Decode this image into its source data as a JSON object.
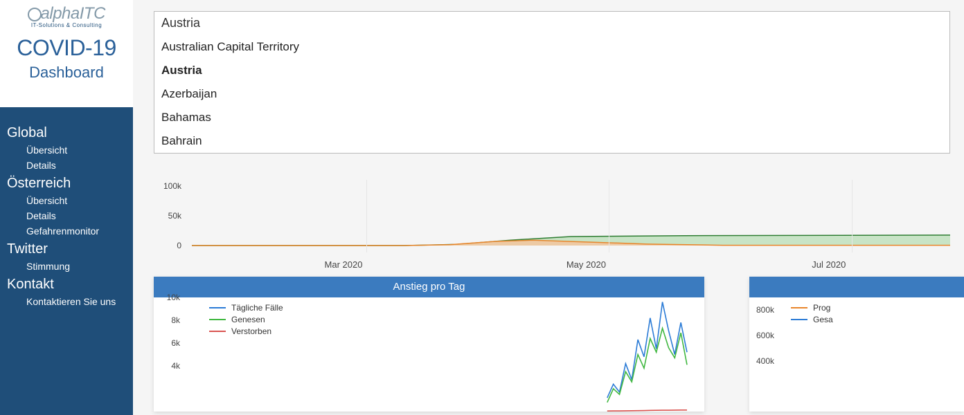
{
  "brand": {
    "left": "alpha",
    "right": "ITC",
    "sub": "IT-Solutions & Consulting"
  },
  "titles": {
    "covid": "COVID-19",
    "dashboard": "Dashboard"
  },
  "nav": {
    "sections": [
      {
        "title": "Global",
        "items": [
          "Übersicht",
          "Details"
        ]
      },
      {
        "title": "Österreich",
        "items": [
          "Übersicht",
          "Details",
          "Gefahrenmonitor"
        ]
      },
      {
        "title": "Twitter",
        "items": [
          "Stimmung"
        ]
      },
      {
        "title": "Kontakt",
        "items": [
          "Kontaktieren Sie uns"
        ]
      }
    ]
  },
  "country_dropdown": {
    "value": "Austria",
    "options": [
      "Australian Capital Territory",
      "Austria",
      "Azerbaijan",
      "Bahamas",
      "Bahrain"
    ],
    "selected_index": 1
  },
  "area_chart": {
    "type": "area",
    "yticks": [
      "100k",
      "50k",
      "0"
    ],
    "ytick_values": [
      100000,
      50000,
      0
    ],
    "ylim": [
      0,
      110000
    ],
    "xticks": [
      "Mar 2020",
      "May 2020",
      "Jul 2020"
    ],
    "xtick_pos": [
      0.2,
      0.52,
      0.84
    ],
    "vline_pos": [
      0.23,
      0.55,
      0.87
    ],
    "grid_color": "#e6e6e6",
    "background_color": "#ffffff",
    "series": [
      {
        "name": "green_area",
        "fill": "#bfe0bd",
        "stroke": "#2e7d32",
        "stroke_width": 1.5,
        "points": [
          [
            0,
            0
          ],
          [
            0.28,
            0
          ],
          [
            0.35,
            2000
          ],
          [
            0.42,
            9000
          ],
          [
            0.5,
            15000
          ],
          [
            0.65,
            16500
          ],
          [
            0.8,
            17000
          ],
          [
            1.0,
            17500
          ]
        ]
      },
      {
        "name": "orange_area",
        "fill": "#f3c59e",
        "stroke": "#e8852b",
        "stroke_width": 1.5,
        "points": [
          [
            0,
            0
          ],
          [
            0.28,
            0
          ],
          [
            0.34,
            1500
          ],
          [
            0.4,
            7000
          ],
          [
            0.45,
            9000
          ],
          [
            0.52,
            6000
          ],
          [
            0.6,
            2500
          ],
          [
            0.7,
            500
          ],
          [
            0.8,
            400
          ],
          [
            1.0,
            400
          ]
        ]
      }
    ]
  },
  "daily_chart": {
    "type": "line",
    "title": "Anstieg pro Tag",
    "yticks": [
      "10k",
      "8k",
      "6k",
      "4k"
    ],
    "ytick_values": [
      10000,
      8000,
      6000,
      4000
    ],
    "ylim": [
      0,
      10000
    ],
    "title_bg": "#3b7bbf",
    "background_color": "#ffffff",
    "legend": [
      {
        "label": "Tägliche Fälle",
        "color": "#2b7bd6"
      },
      {
        "label": "Genesen",
        "color": "#3fb73f"
      },
      {
        "label": "Verstorben",
        "color": "#d9534f"
      }
    ],
    "x_start": 0.84,
    "series": {
      "cases": [
        1200,
        2400,
        1700,
        4200,
        2800,
        6300,
        4800,
        8200,
        5500,
        9600,
        7100,
        5000,
        7800,
        5200
      ],
      "recovered": [
        800,
        2000,
        1500,
        3500,
        2600,
        5000,
        3800,
        6400,
        5200,
        7300,
        5600,
        4700,
        6900,
        4100
      ],
      "deaths": [
        50,
        55,
        58,
        62,
        70,
        80,
        90,
        100,
        110,
        120,
        120,
        125,
        130,
        130
      ]
    }
  },
  "prog_chart": {
    "type": "line",
    "yticks": [
      "800k",
      "600k",
      "400k"
    ],
    "ytick_values": [
      800000,
      600000,
      400000
    ],
    "ylim": [
      0,
      900000
    ],
    "title_bg": "#3b7bbf",
    "legend": [
      {
        "label": "Prog",
        "color": "#e8852b"
      },
      {
        "label": "Gesa",
        "color": "#2b7bd6"
      }
    ]
  },
  "colors": {
    "sidebar_bg": "#1f4e79",
    "panel_header": "#3b7bbf"
  }
}
